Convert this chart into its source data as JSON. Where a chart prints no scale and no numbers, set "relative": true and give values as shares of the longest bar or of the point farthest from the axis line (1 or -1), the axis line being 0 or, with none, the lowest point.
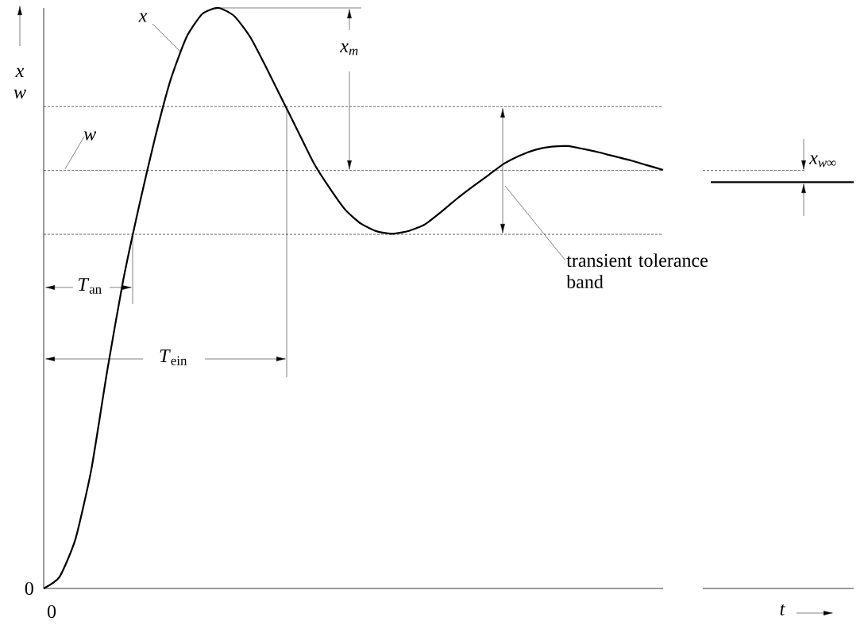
{
  "chart_data": {
    "type": "line",
    "relative": true,
    "xlabel": "t",
    "ylabel": "x w",
    "categories": [
      null,
      null,
      null,
      null,
      null,
      null,
      null,
      null,
      null,
      null,
      null,
      null,
      null,
      null,
      null,
      null,
      null,
      null,
      null,
      null,
      null,
      null,
      null,
      null,
      null,
      null,
      null,
      null,
      null,
      null,
      null,
      null,
      null,
      null,
      null,
      null,
      null,
      null,
      null,
      null,
      null,
      null,
      null,
      null,
      null,
      null,
      null,
      null,
      null,
      null,
      null,
      null
    ],
    "series": [
      {
        "name": "x",
        "color": "#000000",
        "values": [
          0,
          0.02,
          0.085,
          0.205,
          0.375,
          0.53,
          0.658,
          0.775,
          0.877,
          0.95,
          0.99,
          1.0,
          0.986,
          0.95,
          0.898,
          0.843,
          0.788,
          0.733,
          0.69,
          0.652,
          0.628,
          0.615,
          0.611,
          0.616,
          0.627,
          0.648,
          0.671,
          0.692,
          0.712,
          0.732,
          0.746,
          0.756,
          0.761,
          0.762,
          0.757,
          0.751,
          0.744,
          0.737,
          0.729,
          0.721,
          null,
          null,
          null,
          null,
          null,
          null,
          null,
          null,
          null,
          null,
          null,
          null
        ]
      },
      {
        "color": "#000000",
        "values": [
          null,
          null,
          null,
          null,
          null,
          null,
          null,
          null,
          null,
          null,
          null,
          null,
          null,
          null,
          null,
          null,
          null,
          null,
          null,
          null,
          null,
          null,
          null,
          null,
          null,
          null,
          null,
          null,
          null,
          null,
          null,
          null,
          null,
          null,
          null,
          null,
          null,
          null,
          null,
          null,
          null,
          null,
          0.7,
          0.7,
          0.7,
          0.7,
          0.7,
          0.7,
          0.7,
          0.7,
          0.7,
          0.7
        ]
      }
    ],
    "ref_lines": [
      {
        "axis": "y",
        "value": 0.72,
        "label": "w",
        "line_style": "dashed"
      },
      {
        "axis": "y",
        "value": 0.83,
        "line_style": "dashed"
      },
      {
        "axis": "y",
        "value": 0.61,
        "line_style": "dashed"
      }
    ],
    "annotations": [
      "x$_{m}$",
      "*T*$_{an}$",
      "*T*$_{ein}$",
      "transient tolerance band",
      "x$_{w∞}$",
      "0",
      "0"
    ],
    "legend": false,
    "marker": "none",
    "line_style": "solid"
  }
}
